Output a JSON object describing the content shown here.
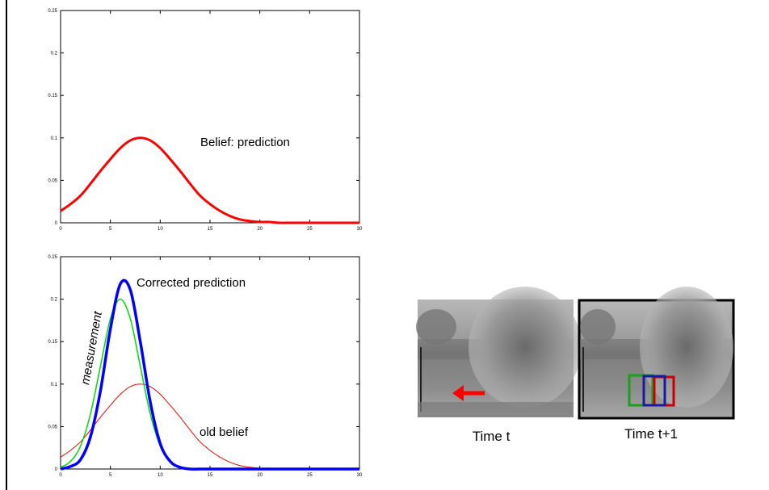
{
  "chart_data": [
    {
      "type": "line",
      "x": [
        0,
        1,
        2,
        3,
        4,
        5,
        6,
        7,
        8,
        9,
        10,
        11,
        12,
        13,
        14,
        15,
        16,
        17,
        18,
        19,
        20,
        21,
        22,
        23,
        24,
        25,
        26,
        27,
        28,
        29,
        30
      ],
      "series": [
        {
          "color": "#ff0000",
          "line_width": 3,
          "values": [
            0.014,
            0.022,
            0.032,
            0.046,
            0.061,
            0.075,
            0.088,
            0.097,
            0.1,
            0.097,
            0.088,
            0.075,
            0.061,
            0.046,
            0.032,
            0.022,
            0.014,
            0.008,
            0.004,
            0.002,
            0.001,
            0.001,
            0,
            0,
            0,
            0,
            0,
            0,
            0,
            0,
            0
          ]
        }
      ],
      "annotations": [
        {
          "text": "Belief: prediction"
        }
      ],
      "xlim": [
        0,
        30
      ],
      "xticks": [
        0,
        5,
        10,
        15,
        20,
        25,
        30
      ],
      "ylim": [
        0,
        0.25
      ],
      "yticks": [
        0,
        0.05,
        0.1,
        0.15,
        0.2,
        0.25
      ]
    },
    {
      "type": "line",
      "x": [
        0,
        1,
        2,
        3,
        4,
        5,
        6,
        7,
        8,
        9,
        10,
        11,
        12,
        13,
        14,
        15,
        16,
        17,
        18,
        19,
        20,
        21,
        22,
        23,
        24,
        25,
        26,
        27,
        28,
        29,
        30
      ],
      "series": [
        {
          "color": "#ff0000",
          "line_width": 1,
          "values": [
            0.014,
            0.022,
            0.032,
            0.046,
            0.061,
            0.075,
            0.088,
            0.097,
            0.1,
            0.097,
            0.088,
            0.075,
            0.061,
            0.046,
            0.032,
            0.022,
            0.014,
            0.008,
            0.004,
            0.002,
            0.001,
            0.001,
            0,
            0,
            0,
            0,
            0,
            0,
            0,
            0,
            0
          ]
        },
        {
          "color": "#00dd00",
          "line_width": 1.5,
          "values": [
            0.002,
            0.009,
            0.027,
            0.065,
            0.121,
            0.177,
            0.2,
            0.177,
            0.121,
            0.065,
            0.027,
            0.009,
            0.002,
            0,
            0,
            0,
            0,
            0,
            0,
            0,
            0,
            0,
            0,
            0,
            0,
            0,
            0,
            0,
            0,
            0,
            0
          ]
        },
        {
          "color": "#0000ff",
          "line_width": 3.5,
          "values": [
            0,
            0.003,
            0.011,
            0.038,
            0.092,
            0.165,
            0.218,
            0.211,
            0.15,
            0.079,
            0.03,
            0.009,
            0.002,
            0,
            0,
            0,
            0,
            0,
            0,
            0,
            0,
            0,
            0,
            0,
            0,
            0,
            0,
            0,
            0,
            0,
            0
          ]
        }
      ],
      "annotations": [
        {
          "text": "Corrected prediction"
        },
        {
          "text": "measurement"
        },
        {
          "text": "old belief"
        }
      ],
      "xlim": [
        0,
        30
      ],
      "xticks": [
        0,
        5,
        10,
        15,
        20,
        25,
        30
      ],
      "ylim": [
        0,
        0.25
      ],
      "yticks": [
        0,
        0.05,
        0.1,
        0.15,
        0.2,
        0.25
      ]
    }
  ],
  "images": [
    {
      "caption": "Time t"
    },
    {
      "caption": "Time t+1"
    }
  ]
}
